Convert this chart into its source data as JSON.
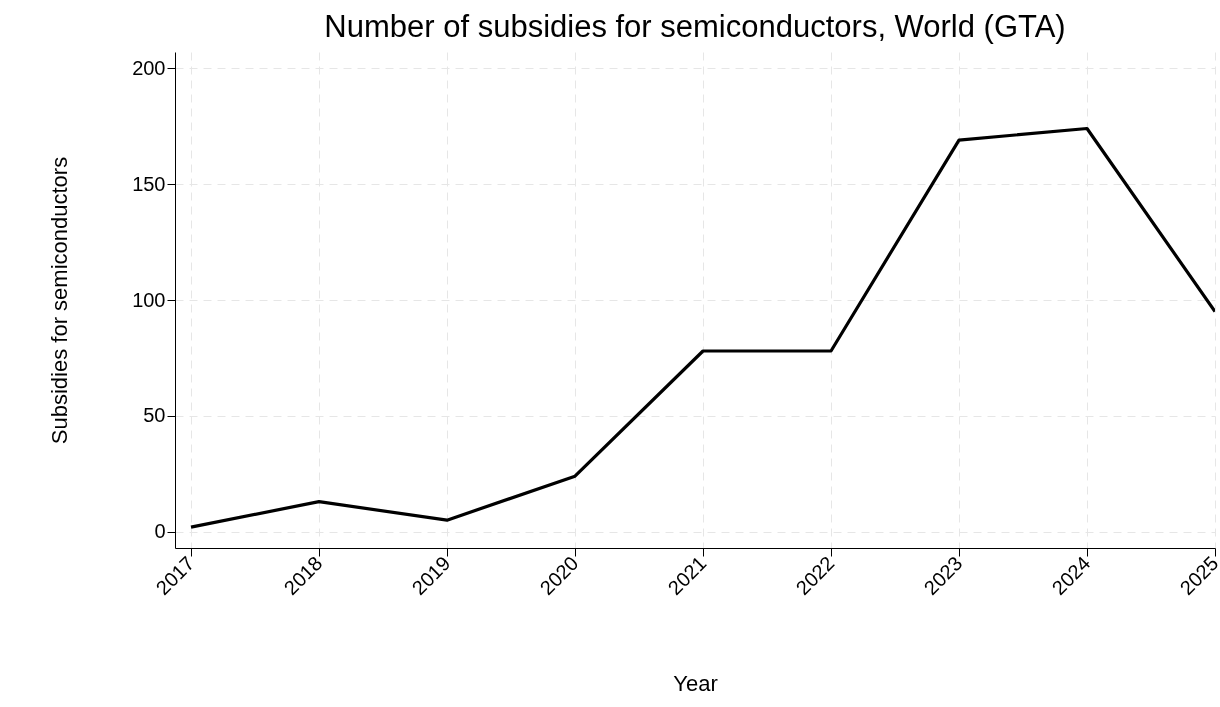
{
  "chart_data": {
    "type": "line",
    "title": "Number of subsidies for semiconductors, World (GTA)",
    "xlabel": "Year",
    "ylabel": "Subsidies for semiconductors",
    "x": [
      2017,
      2018,
      2019,
      2020,
      2021,
      2022,
      2023,
      2024,
      2025
    ],
    "series": [
      {
        "color": "#000000",
        "values": [
          2,
          13,
          5,
          24,
          78,
          78,
          169,
          174,
          95
        ]
      }
    ],
    "xlim": [
      2016.875,
      2025
    ],
    "xticks": [
      2017,
      2018,
      2019,
      2020,
      2021,
      2022,
      2023,
      2024,
      2025
    ],
    "ylim": [
      -7,
      207
    ],
    "yticks": [
      0,
      50,
      100,
      150,
      200
    ],
    "grid": true
  }
}
